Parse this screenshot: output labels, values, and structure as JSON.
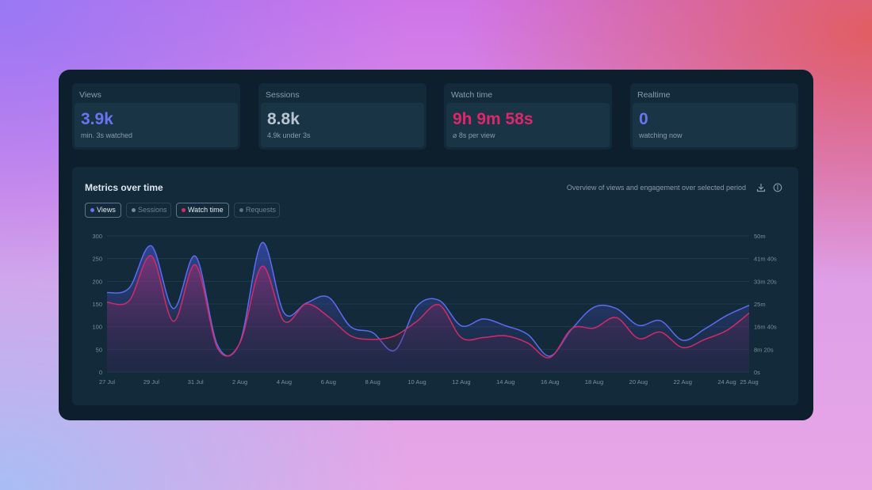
{
  "stats": [
    {
      "title": "Views",
      "value": "3.9k",
      "sub": "min. 3s watched",
      "color": "#6b74f0"
    },
    {
      "title": "Sessions",
      "value": "8.8k",
      "sub": "4.9k under 3s",
      "color": "#b7c4d0"
    },
    {
      "title": "Watch time",
      "value": "9h 9m 58s",
      "sub": "⌀ 8s per view",
      "color": "#e0266b"
    },
    {
      "title": "Realtime",
      "value": "0",
      "sub": "watching now",
      "color": "#6b74f0"
    }
  ],
  "chart_section": {
    "title": "Metrics over time",
    "description": "Overview of views and engagement over selected period",
    "download_icon": "download-icon",
    "info_icon": "info-icon",
    "legend": [
      {
        "label": "Views",
        "active": true,
        "color": "#6b74f0"
      },
      {
        "label": "Sessions",
        "active": false,
        "color": "#7d8a96"
      },
      {
        "label": "Watch time",
        "active": true,
        "color": "#e0266b"
      },
      {
        "label": "Requests",
        "active": false,
        "color": "#5f6f7c"
      }
    ]
  },
  "chart_data": {
    "type": "area",
    "x_labels": [
      "27 Jul",
      "29 Jul",
      "31 Jul",
      "2 Aug",
      "4 Aug",
      "6 Aug",
      "8 Aug",
      "10 Aug",
      "12 Aug",
      "14 Aug",
      "16 Aug",
      "18 Aug",
      "20 Aug",
      "22 Aug",
      "24 Aug",
      "25 Aug"
    ],
    "y_left_ticks": [
      "0",
      "50",
      "100",
      "150",
      "200",
      "250",
      "300"
    ],
    "y_left_range": [
      0,
      300
    ],
    "y_right_ticks": [
      "0s",
      "8m 20s",
      "16m 40s",
      "25m",
      "33m 20s",
      "41m 40s",
      "50m"
    ],
    "y_right_range_seconds": [
      0,
      3000
    ],
    "grid": true,
    "series": [
      {
        "name": "Views",
        "axis": "left",
        "color": "#5b6cf0",
        "values": [
          175,
          185,
          278,
          140,
          255,
          58,
          65,
          285,
          130,
          152,
          165,
          100,
          87,
          48,
          145,
          158,
          102,
          117,
          102,
          83,
          35,
          95,
          143,
          140,
          103,
          113,
          70,
          95,
          125,
          147
        ]
      },
      {
        "name": "Watch time",
        "axis": "right",
        "color": "#d42a6a",
        "values": [
          1540,
          1570,
          2560,
          1120,
          2360,
          520,
          640,
          2330,
          1120,
          1500,
          1220,
          800,
          720,
          800,
          1120,
          1480,
          760,
          760,
          800,
          640,
          320,
          960,
          970,
          1200,
          740,
          880,
          540,
          720,
          920,
          1300
        ]
      }
    ]
  }
}
